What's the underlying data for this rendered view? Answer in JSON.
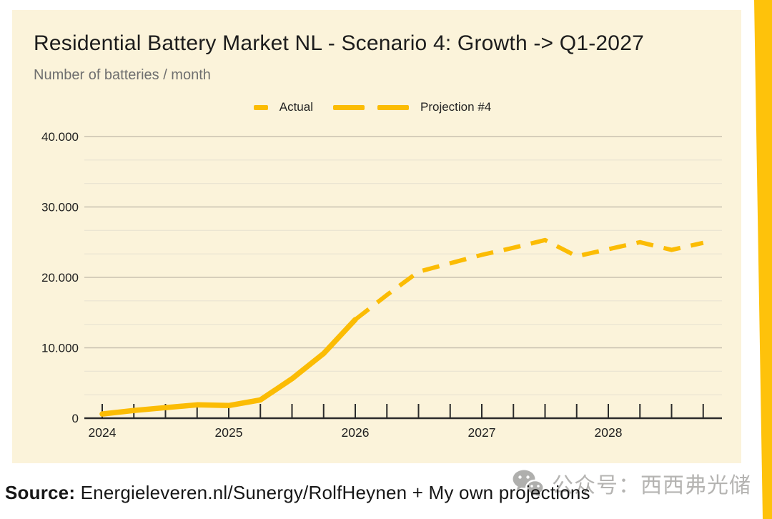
{
  "page": {
    "background": "#FFFFFF"
  },
  "accent_stripe": {
    "color": "#FEC20B"
  },
  "card": {
    "background": "#FBF3DA"
  },
  "header": {
    "title": "Residential Battery Market NL - Scenario 4: Growth -> Q1-2027",
    "subtitle": "Number of batteries / month"
  },
  "legend": {
    "items": [
      {
        "label": "Actual",
        "style": "solid"
      },
      {
        "label": "Projection #4",
        "style": "dashed"
      }
    ]
  },
  "chart_data": {
    "type": "line",
    "title": "Residential Battery Market NL - Scenario 4: Growth -> Q1-2027",
    "ylabel": "Number of batteries / month",
    "xlabel": "",
    "ylim": [
      0,
      40000
    ],
    "xlim": [
      2024,
      2029
    ],
    "grid": "horizontal major every 10.000, two minor lines between majors",
    "legend_position": "top-center",
    "y_ticks": [
      {
        "value": 0,
        "label": "0"
      },
      {
        "value": 10000,
        "label": "10.000"
      },
      {
        "value": 20000,
        "label": "20.000"
      },
      {
        "value": 30000,
        "label": "30.000"
      },
      {
        "value": 40000,
        "label": "40.000"
      }
    ],
    "x_ticks": [
      {
        "value": 2024,
        "label": "2024"
      },
      {
        "value": 2025,
        "label": "2025"
      },
      {
        "value": 2026,
        "label": "2026"
      },
      {
        "value": 2027,
        "label": "2027"
      },
      {
        "value": 2028,
        "label": "2028"
      }
    ],
    "x_minor_tick_step_years": 0.25,
    "series": [
      {
        "name": "Actual",
        "style": "solid",
        "line_width": 7.5,
        "x": [
          2024,
          2024.25,
          2024.5,
          2024.75,
          2025,
          2025.25,
          2025.5,
          2025.75,
          2026
        ],
        "values": [
          600,
          1100,
          1500,
          1900,
          1800,
          2600,
          5600,
          9200,
          14000
        ]
      },
      {
        "name": "Projection #4",
        "style": "dashed",
        "line_width": 6,
        "x": [
          2026,
          2026.25,
          2026.5,
          2026.75,
          2027,
          2027.25,
          2027.5,
          2027.75,
          2028,
          2028.25,
          2028.5,
          2028.75
        ],
        "values": [
          14000,
          17500,
          20800,
          22000,
          23200,
          24200,
          25300,
          23000,
          24000,
          25000,
          23900,
          24900
        ]
      }
    ],
    "colors": {
      "line": "#FBBC04",
      "axis": "#2B2B2B",
      "grid_major": "#C9C2B0",
      "grid_minor": "#E9E3D1",
      "label": "#1F1F1F"
    }
  },
  "footer": {
    "source_label": "Source:",
    "source_text": "Energieleveren.nl/Sunergy/RolfHeynen + My own projections"
  },
  "watermark": {
    "icon": "wechat-icon",
    "text": "公众号：西西弗光储"
  }
}
